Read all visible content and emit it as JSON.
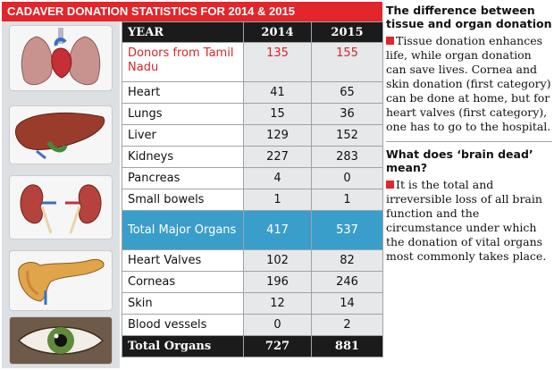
{
  "banner": {
    "title": "CADAVER DONATION STATISTICS FOR 2014 & 2015"
  },
  "table": {
    "headers": [
      "YEAR",
      "2014",
      "2015"
    ],
    "donors": {
      "label": "Donors from Tamil Nadu",
      "v2014": "135",
      "v2015": "155"
    },
    "rows": [
      {
        "label": "Heart",
        "v2014": "41",
        "v2015": "65"
      },
      {
        "label": "Lungs",
        "v2014": "15",
        "v2015": "36"
      },
      {
        "label": "Liver",
        "v2014": "129",
        "v2015": "152"
      },
      {
        "label": "Kidneys",
        "v2014": "227",
        "v2015": "283"
      },
      {
        "label": "Pancreas",
        "v2014": "4",
        "v2015": "0"
      },
      {
        "label": "Small bowels",
        "v2014": "1",
        "v2015": "1"
      }
    ],
    "major": {
      "label": "Total Major Organs",
      "v2014": "417",
      "v2015": "537"
    },
    "rows2": [
      {
        "label": "Heart Valves",
        "v2014": "102",
        "v2015": "82"
      },
      {
        "label": "Corneas",
        "v2014": "196",
        "v2015": "246"
      },
      {
        "label": "Skin",
        "v2014": "12",
        "v2015": "14"
      },
      {
        "label": "Blood vessels",
        "v2014": "0",
        "v2015": "2"
      }
    ],
    "total": {
      "label": "Total Organs",
      "v2014": "727",
      "v2015": "881"
    }
  },
  "sidebar": {
    "h1": "The difference between tissue and organ donation",
    "p1": "Tissue donation enhances life, while organ donation can save lives. Cornea and skin donation (first category) can be done at home, but for heart valves (first category), one has to go to the hospital.",
    "h2": "What does ‘brain dead’ mean?",
    "p2": "It is the total and irreversible loss of all brain function and the circumstance under which the donation of vital organs most commonly takes place."
  },
  "images": [
    "heart-lungs",
    "liver",
    "kidneys",
    "pancreas",
    "eye"
  ],
  "colors": {
    "banner": "#e1262c",
    "highlight": "#3a9ecb",
    "header": "#1b1b1b",
    "donors_text": "#d6262c"
  }
}
